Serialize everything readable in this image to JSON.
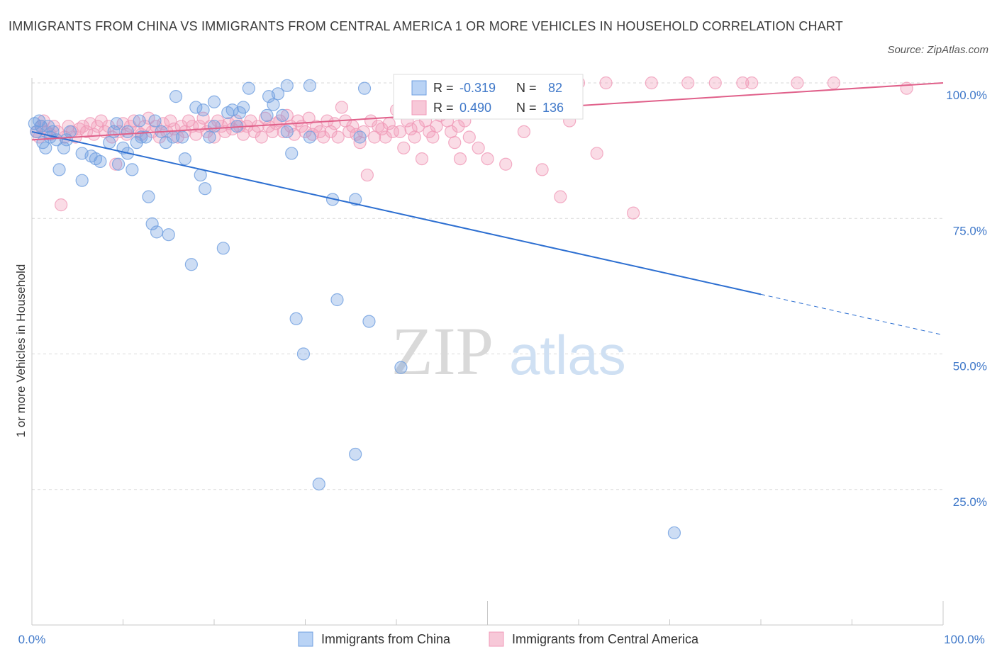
{
  "title": "IMMIGRANTS FROM CHINA VS IMMIGRANTS FROM CENTRAL AMERICA 1 OR MORE VEHICLES IN HOUSEHOLD CORRELATION CHART",
  "source": "Source: ZipAtlas.com",
  "watermark": {
    "zip": "ZIP",
    "atlas": "atlas"
  },
  "chart_data": {
    "type": "scatter",
    "xlabel": "",
    "ylabel": "1 or more Vehicles in Household",
    "xlim": [
      0,
      100
    ],
    "ylim": [
      0,
      100
    ],
    "x_tick_labels": [
      "0.0%",
      "100.0%"
    ],
    "y_ticks": [
      25,
      50,
      75,
      100
    ],
    "y_tick_labels": [
      "25.0%",
      "50.0%",
      "75.0%",
      "100.0%"
    ],
    "grid": true,
    "legend_position": "bottom",
    "stats": [
      {
        "r_label": "R =",
        "r_value": "-0.319",
        "n_label": "N =",
        "n_value": "82"
      },
      {
        "r_label": "R =",
        "r_value": "0.490",
        "n_label": "N =",
        "n_value": "136"
      }
    ],
    "series": [
      {
        "name": "Immigrants from China",
        "color": "#6f9fe0",
        "line_color": "#2d6fd1",
        "trend": {
          "x0": 0,
          "y0": 91.0,
          "x1": 80,
          "y1": 61.0,
          "dash_to_x": 100,
          "dash_to_y": 53.5
        },
        "points": [
          [
            0.3,
            92.5
          ],
          [
            0.5,
            91
          ],
          [
            0.8,
            93
          ],
          [
            1,
            92
          ],
          [
            1.2,
            89
          ],
          [
            1.5,
            88
          ],
          [
            1.8,
            92
          ],
          [
            2,
            90
          ],
          [
            2.3,
            91
          ],
          [
            2.7,
            89.5
          ],
          [
            3,
            84
          ],
          [
            3.5,
            88
          ],
          [
            3.8,
            89.5
          ],
          [
            4.2,
            91
          ],
          [
            5.5,
            82
          ],
          [
            5.5,
            87
          ],
          [
            6.5,
            86.5
          ],
          [
            7,
            86
          ],
          [
            7.5,
            85.5
          ],
          [
            8.5,
            89
          ],
          [
            9.3,
            92.5
          ],
          [
            9,
            91
          ],
          [
            9.5,
            85
          ],
          [
            10,
            88
          ],
          [
            10.5,
            91
          ],
          [
            10.5,
            87
          ],
          [
            11,
            84
          ],
          [
            11.5,
            89
          ],
          [
            11.8,
            93
          ],
          [
            12,
            90
          ],
          [
            12.5,
            90
          ],
          [
            12.8,
            79
          ],
          [
            13.5,
            93
          ],
          [
            13.7,
            72.5
          ],
          [
            13.2,
            74
          ],
          [
            14.2,
            91
          ],
          [
            14.7,
            89
          ],
          [
            15,
            72
          ],
          [
            15.5,
            90
          ],
          [
            15.8,
            97.5
          ],
          [
            16.5,
            90
          ],
          [
            16.8,
            86
          ],
          [
            17.5,
            66.5
          ],
          [
            18,
            95.5
          ],
          [
            18.5,
            83
          ],
          [
            19,
            80.5
          ],
          [
            18.8,
            95
          ],
          [
            19.5,
            90
          ],
          [
            20,
            92
          ],
          [
            20,
            96.5
          ],
          [
            21,
            69.5
          ],
          [
            21.5,
            94.5
          ],
          [
            22,
            95
          ],
          [
            22.5,
            92
          ],
          [
            22.8,
            94.5
          ],
          [
            23.2,
            95.5
          ],
          [
            23.8,
            99
          ],
          [
            25.8,
            94
          ],
          [
            26,
            97.5
          ],
          [
            26.5,
            96
          ],
          [
            27,
            98
          ],
          [
            27.5,
            94
          ],
          [
            28,
            91
          ],
          [
            28.5,
            87
          ],
          [
            28,
            99.5
          ],
          [
            29,
            56.5
          ],
          [
            29.8,
            50
          ],
          [
            30.5,
            90
          ],
          [
            30.5,
            99.5
          ],
          [
            31.5,
            26
          ],
          [
            33,
            78.5
          ],
          [
            33.5,
            60
          ],
          [
            35.5,
            31.5
          ],
          [
            35.5,
            78.5
          ],
          [
            36,
            90
          ],
          [
            36.5,
            99
          ],
          [
            37,
            56
          ],
          [
            40.5,
            47.5
          ],
          [
            42,
            100
          ],
          [
            70.5,
            17
          ]
        ]
      },
      {
        "name": "Immigrants from Central America",
        "color": "#f09ab8",
        "line_color": "#e0608a",
        "trend": {
          "x0": 0,
          "y0": 89.5,
          "x1": 100,
          "y1": 100
        },
        "points": [
          [
            0.5,
            91
          ],
          [
            0.8,
            90
          ],
          [
            1,
            92
          ],
          [
            1.3,
            93
          ],
          [
            1.6,
            91
          ],
          [
            2,
            90.5
          ],
          [
            2.4,
            92
          ],
          [
            2.8,
            91
          ],
          [
            3.2,
            77.5
          ],
          [
            3.6,
            90
          ],
          [
            4,
            92
          ],
          [
            4.4,
            91
          ],
          [
            4.8,
            90
          ],
          [
            5.2,
            91.5
          ],
          [
            5.6,
            92
          ],
          [
            6,
            91
          ],
          [
            6.4,
            92.5
          ],
          [
            6.8,
            90.5
          ],
          [
            7.2,
            92
          ],
          [
            7.6,
            93
          ],
          [
            8,
            91
          ],
          [
            8.4,
            92
          ],
          [
            8.8,
            90
          ],
          [
            9.2,
            85
          ],
          [
            9.6,
            91
          ],
          [
            10,
            92.5
          ],
          [
            10.4,
            90.5
          ],
          [
            10.8,
            92
          ],
          [
            11.2,
            93
          ],
          [
            11.6,
            91
          ],
          [
            12,
            90.5
          ],
          [
            12.4,
            92
          ],
          [
            12.8,
            93.5
          ],
          [
            13.2,
            91
          ],
          [
            13.6,
            92
          ],
          [
            14,
            90
          ],
          [
            14.4,
            92.5
          ],
          [
            14.8,
            91
          ],
          [
            15.2,
            93
          ],
          [
            15.6,
            91.5
          ],
          [
            16,
            90
          ],
          [
            16.4,
            92
          ],
          [
            16.8,
            91
          ],
          [
            17.2,
            93
          ],
          [
            17.6,
            92
          ],
          [
            18,
            90.5
          ],
          [
            18.4,
            92
          ],
          [
            18.8,
            93.5
          ],
          [
            19.2,
            91
          ],
          [
            19.6,
            92
          ],
          [
            20,
            90
          ],
          [
            20.4,
            93
          ],
          [
            20.8,
            92
          ],
          [
            21.2,
            91
          ],
          [
            21.6,
            92.5
          ],
          [
            22,
            91.5
          ],
          [
            22.4,
            93
          ],
          [
            22.8,
            92
          ],
          [
            23.2,
            90.5
          ],
          [
            23.6,
            92
          ],
          [
            24,
            93
          ],
          [
            24.4,
            91
          ],
          [
            24.8,
            92
          ],
          [
            25.2,
            90
          ],
          [
            25.6,
            93.5
          ],
          [
            26,
            92
          ],
          [
            26.4,
            91
          ],
          [
            26.8,
            92.5
          ],
          [
            27.2,
            93
          ],
          [
            27.6,
            91
          ],
          [
            28,
            94
          ],
          [
            28.4,
            92
          ],
          [
            28.8,
            90.5
          ],
          [
            29.2,
            93
          ],
          [
            29.6,
            92
          ],
          [
            30,
            91
          ],
          [
            30.4,
            93.5
          ],
          [
            30.8,
            90.5
          ],
          [
            31.2,
            92
          ],
          [
            31.6,
            91
          ],
          [
            32,
            90
          ],
          [
            32.4,
            93
          ],
          [
            32.8,
            91
          ],
          [
            33.2,
            92.5
          ],
          [
            33.6,
            90
          ],
          [
            34,
            95.5
          ],
          [
            34.4,
            93
          ],
          [
            34.8,
            91
          ],
          [
            35.2,
            92
          ],
          [
            35.6,
            90.5
          ],
          [
            36,
            89
          ],
          [
            36.4,
            91
          ],
          [
            36.8,
            83
          ],
          [
            37.2,
            93
          ],
          [
            37.6,
            90
          ],
          [
            38,
            92
          ],
          [
            38.4,
            91.5
          ],
          [
            38.8,
            90
          ],
          [
            39.2,
            92.5
          ],
          [
            39.6,
            91
          ],
          [
            40,
            95
          ],
          [
            40.4,
            91
          ],
          [
            40.8,
            88
          ],
          [
            41.2,
            93
          ],
          [
            41.6,
            91.5
          ],
          [
            42,
            90
          ],
          [
            42.4,
            92
          ],
          [
            42.8,
            86
          ],
          [
            43.2,
            93
          ],
          [
            43.6,
            91
          ],
          [
            44,
            90
          ],
          [
            44.4,
            92
          ],
          [
            44.8,
            94
          ],
          [
            45.2,
            96
          ],
          [
            45.6,
            93
          ],
          [
            46,
            91
          ],
          [
            46.4,
            89
          ],
          [
            46.8,
            92
          ],
          [
            47,
            86
          ],
          [
            47.5,
            93
          ],
          [
            48,
            90
          ],
          [
            49,
            88
          ],
          [
            50,
            86
          ],
          [
            52,
            85
          ],
          [
            54,
            91
          ],
          [
            56,
            84
          ],
          [
            58,
            79
          ],
          [
            59,
            93
          ],
          [
            60,
            100
          ],
          [
            62,
            87
          ],
          [
            63,
            100
          ],
          [
            66,
            76
          ],
          [
            68,
            100
          ],
          [
            72,
            100
          ],
          [
            75,
            100
          ],
          [
            78,
            100
          ],
          [
            79,
            100
          ],
          [
            84,
            100
          ],
          [
            88,
            100
          ],
          [
            96,
            99
          ]
        ]
      }
    ]
  }
}
